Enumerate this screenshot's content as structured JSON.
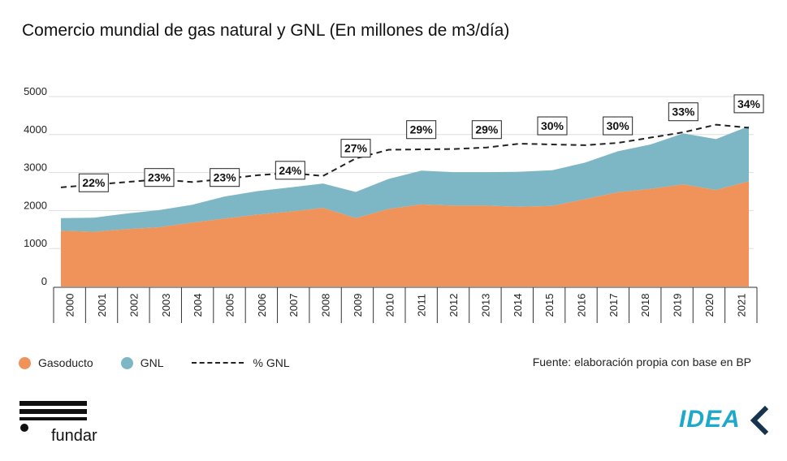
{
  "title": "Comercio mundial de gas natural y GNL (En millones de m3/día)",
  "colors": {
    "gasoducto": "#f0935a",
    "gnl": "#7db6c4",
    "line": "#222222",
    "idea": "#1ea8c9"
  },
  "legend": {
    "gasoducto": "Gasoducto",
    "gnl": "GNL",
    "pct": "% GNL"
  },
  "source": "Fuente: elaboración propia con base en BP",
  "logos": {
    "fundar": "fundar",
    "idea": "IDEA"
  },
  "chart_data": {
    "type": "area",
    "title": "Comercio mundial de gas natural y GNL (En millones de m3/día)",
    "x": [
      "2000",
      "2001",
      "2002",
      "2003",
      "2004",
      "2005",
      "2006",
      "2007",
      "2008",
      "2009",
      "2010",
      "2011",
      "2012",
      "2013",
      "2014",
      "2015",
      "2016",
      "2017",
      "2018",
      "2019",
      "2020",
      "2021"
    ],
    "ylim": [
      0,
      5000
    ],
    "yticks": [
      0,
      1000,
      2000,
      3000,
      4000,
      5000
    ],
    "stacked": true,
    "series": [
      {
        "name": "Gasoducto",
        "values": [
          1470,
          1440,
          1510,
          1560,
          1680,
          1790,
          1890,
          1970,
          2070,
          1800,
          2040,
          2160,
          2130,
          2130,
          2100,
          2120,
          2300,
          2480,
          2570,
          2690,
          2540,
          2770
        ]
      },
      {
        "name": "GNL",
        "values": [
          330,
          370,
          410,
          450,
          470,
          580,
          620,
          640,
          640,
          690,
          790,
          890,
          880,
          880,
          920,
          940,
          960,
          1080,
          1170,
          1340,
          1340,
          1450
        ]
      }
    ],
    "line": {
      "name": "% GNL",
      "style": "dashed",
      "values": [
        2610,
        2680,
        2750,
        2820,
        2750,
        2830,
        2930,
        2990,
        2910,
        3370,
        3600,
        3610,
        3620,
        3660,
        3760,
        3740,
        3720,
        3780,
        3920,
        4060,
        4260,
        4180
      ]
    },
    "annotations": [
      {
        "x": "2001",
        "label": "22%",
        "y": 2730
      },
      {
        "x": "2003",
        "label": "23%",
        "y": 2870
      },
      {
        "x": "2005",
        "label": "23%",
        "y": 2870
      },
      {
        "x": "2007",
        "label": "24%",
        "y": 3060
      },
      {
        "x": "2009",
        "label": "27%",
        "y": 3640
      },
      {
        "x": "2011",
        "label": "29%",
        "y": 4130
      },
      {
        "x": "2013",
        "label": "29%",
        "y": 4130
      },
      {
        "x": "2015",
        "label": "30%",
        "y": 4230
      },
      {
        "x": "2017",
        "label": "30%",
        "y": 4230
      },
      {
        "x": "2019",
        "label": "33%",
        "y": 4600
      },
      {
        "x": "2021",
        "label": "34%",
        "y": 4810
      }
    ]
  }
}
